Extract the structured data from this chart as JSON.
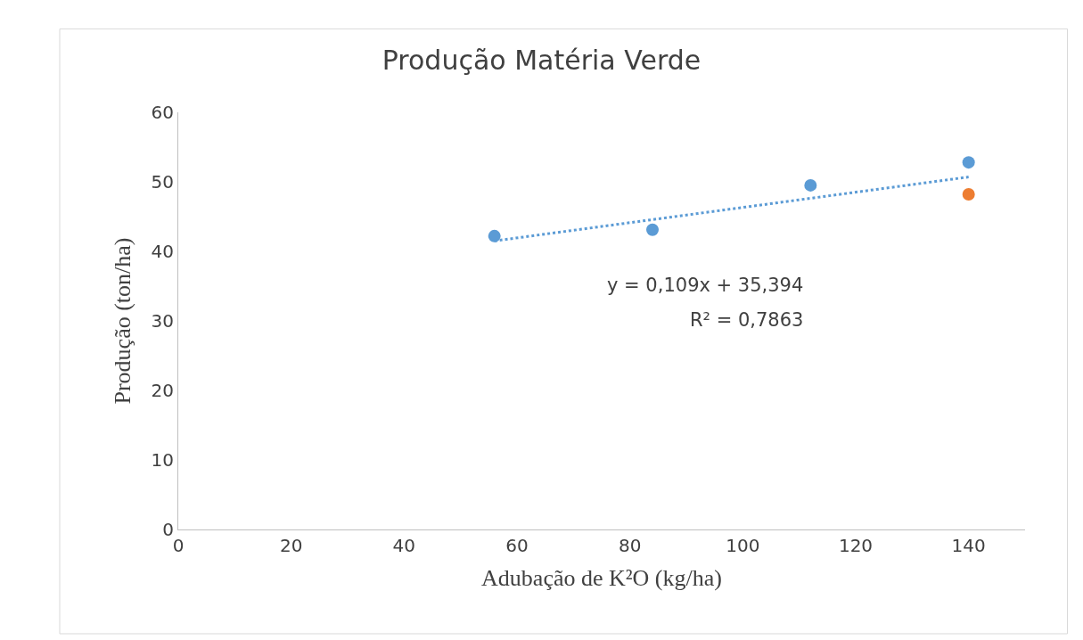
{
  "chart_data": {
    "type": "scatter",
    "title": "Produção Matéria Verde",
    "xlabel": "Adubação de K²O (kg/ha)",
    "ylabel": "Produção (ton/ha)",
    "xlim": [
      0,
      150
    ],
    "xticks": [
      0,
      20,
      40,
      60,
      80,
      100,
      120,
      140
    ],
    "ylim": [
      0,
      60
    ],
    "yticks": [
      0,
      10,
      20,
      30,
      40,
      50,
      60
    ],
    "marker": "circle",
    "series": [
      {
        "color": "#5b9bd5",
        "x": [
          56,
          84,
          112,
          140
        ],
        "values": [
          42.2,
          43.1,
          49.5,
          52.8
        ]
      },
      {
        "color": "#ed7d31",
        "x": [
          140
        ],
        "values": [
          48.2
        ]
      },
      {
        "type": "line",
        "color": "#5b9bd5",
        "line_style": "dotted",
        "marker": "none",
        "x": [
          56,
          140
        ],
        "values": [
          41.5,
          50.7
        ]
      }
    ],
    "annotations": [
      "y = 0,109x + 35,394",
      "R² = 0,7863"
    ]
  }
}
